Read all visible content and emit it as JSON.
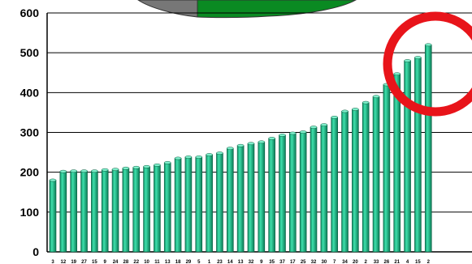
{
  "chart_data": {
    "type": "bar",
    "categories": [
      "3",
      "12",
      "19",
      "27",
      "15",
      "9",
      "24",
      "28",
      "22",
      "10",
      "11",
      "13",
      "18",
      "29",
      "5",
      "1",
      "23",
      "14",
      "13",
      "32",
      "9",
      "35",
      "37",
      "17",
      "25",
      "32",
      "30",
      "7",
      "34",
      "20",
      "2",
      "33",
      "26",
      "21",
      "4",
      "15",
      "2"
    ],
    "values": [
      180,
      202,
      203,
      203,
      203,
      206,
      207,
      210,
      212,
      214,
      218,
      224,
      235,
      238,
      238,
      244,
      248,
      260,
      267,
      272,
      276,
      285,
      293,
      298,
      301,
      313,
      319,
      338,
      353,
      358,
      375,
      390,
      420,
      447,
      480,
      488,
      520
    ],
    "ylim": [
      0,
      600
    ],
    "yticks": [
      0,
      100,
      200,
      300,
      400,
      500,
      600
    ],
    "grid": true,
    "bar_color": "#1ec08e",
    "annotation_color": "#e8141a",
    "top_shape_colors": [
      "#777777",
      "#0a8a22"
    ]
  }
}
